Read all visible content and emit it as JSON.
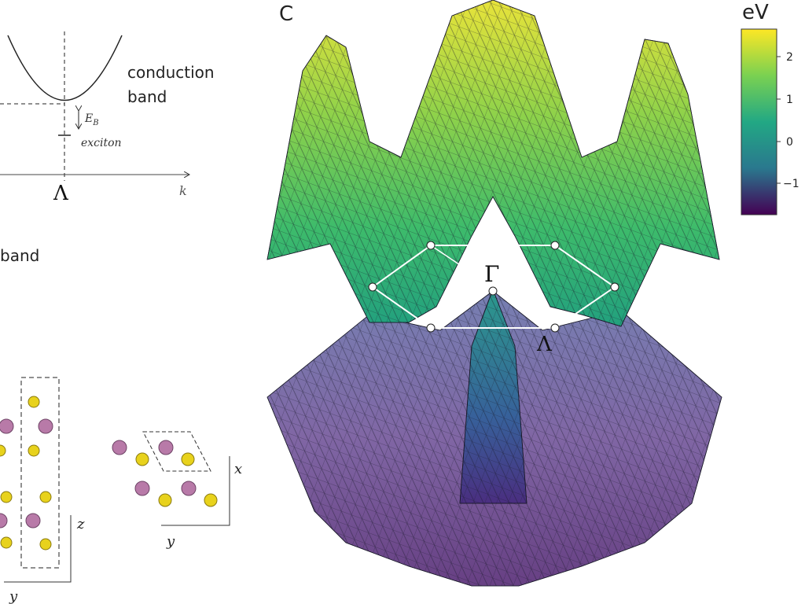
{
  "panel_label": "C",
  "band_diagram": {
    "conduction_label": [
      "conduction",
      "band"
    ],
    "binding_energy": "E",
    "binding_energy_sub": "B",
    "exciton": "exciton",
    "k_point": "Λ",
    "axis": "k",
    "valence_label": "band"
  },
  "structures": {
    "side_axes": [
      "z",
      "y"
    ],
    "top_axes": [
      "x",
      "y"
    ]
  },
  "surface": {
    "gamma": "Γ",
    "lambda": "Λ"
  },
  "colorbar": {
    "unit": "eV",
    "ticks": [
      "2",
      "1",
      "0",
      "−1"
    ]
  }
}
